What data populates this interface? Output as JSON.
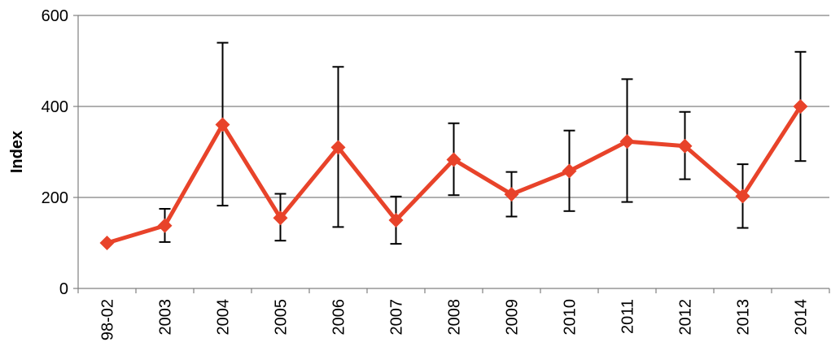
{
  "chart_data": {
    "type": "line",
    "title": "",
    "xlabel": "",
    "ylabel": "Index",
    "ylim": [
      0,
      600
    ],
    "yticks": [
      0,
      200,
      400,
      600
    ],
    "grid": "horizontal",
    "legend": "none",
    "categories": [
      "98-02",
      "2003",
      "2004",
      "2005",
      "2006",
      "2007",
      "2008",
      "2009",
      "2010",
      "2011",
      "2012",
      "2013",
      "2014"
    ],
    "series": [
      {
        "values": [
          100,
          138,
          360,
          155,
          310,
          150,
          283,
          207,
          258,
          323,
          313,
          203,
          400
        ],
        "error_low": [
          null,
          102,
          182,
          105,
          135,
          98,
          205,
          158,
          170,
          190,
          240,
          133,
          280
        ],
        "error_high": [
          null,
          175,
          540,
          208,
          487,
          202,
          363,
          256,
          347,
          460,
          388,
          273,
          520
        ],
        "color": "#e8432a",
        "marker": "diamond"
      }
    ]
  }
}
